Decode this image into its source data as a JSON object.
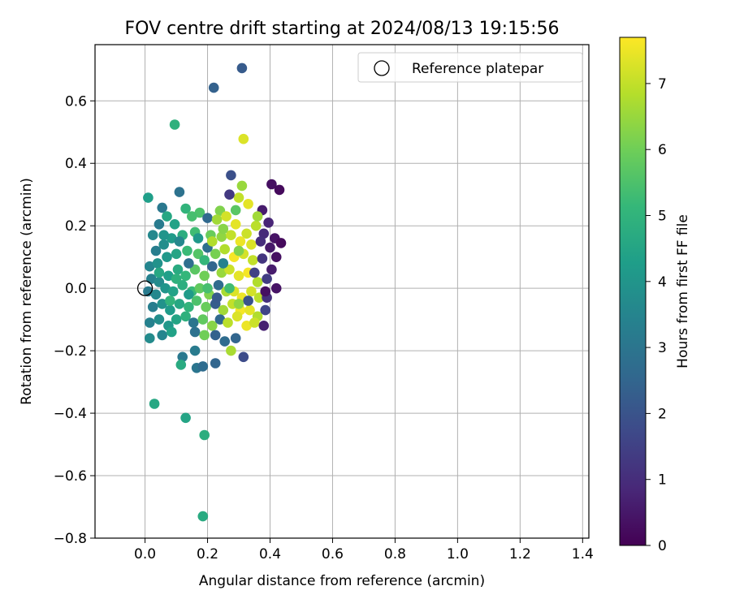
{
  "chart_data": {
    "type": "scatter",
    "title": "FOV centre drift starting at 2024/08/13 19:15:56",
    "xlabel": "Angular distance from reference (arcmin)",
    "ylabel": "Rotation from reference (arcmin)",
    "xlim": [
      -0.16,
      1.42
    ],
    "ylim": [
      -0.8,
      0.78
    ],
    "xticks": [
      0.0,
      0.2,
      0.4,
      0.6,
      0.8,
      1.0,
      1.2,
      1.4
    ],
    "yticks": [
      -0.8,
      -0.6,
      -0.4,
      -0.2,
      0.0,
      0.2,
      0.4,
      0.6
    ],
    "xtick_labels": [
      "0.0",
      "0.2",
      "0.4",
      "0.6",
      "0.8",
      "1.0",
      "1.2",
      "1.4"
    ],
    "ytick_labels": [
      "−0.8",
      "−0.6",
      "−0.4",
      "−0.2",
      "0.0",
      "0.2",
      "0.4",
      "0.6"
    ],
    "grid": true,
    "legend": {
      "position": "top-right",
      "entries": [
        {
          "label": "Reference platepar",
          "marker": "open-circle"
        }
      ]
    },
    "reference_point": {
      "x": 0.0,
      "y": 0.0
    },
    "colorbar": {
      "label": "Hours from first FF file",
      "colormap": "viridis",
      "range": [
        0,
        7.7
      ],
      "ticks": [
        0,
        1,
        2,
        3,
        4,
        5,
        6,
        7
      ],
      "tick_labels": [
        "0",
        "1",
        "2",
        "3",
        "4",
        "5",
        "6",
        "7"
      ]
    },
    "colormap_stops": [
      "#440154",
      "#482878",
      "#3e4989",
      "#31688e",
      "#26828e",
      "#1f9e89",
      "#35b779",
      "#6ece58",
      "#b5de2b",
      "#fde725"
    ],
    "points": [
      [
        0.31,
        0.705,
        2.2
      ],
      [
        0.22,
        0.642,
        2.4
      ],
      [
        0.095,
        0.524,
        4.9
      ],
      [
        0.315,
        0.478,
        7.3
      ],
      [
        0.405,
        0.333,
        0.3
      ],
      [
        0.43,
        0.315,
        0.2
      ],
      [
        0.275,
        0.362,
        1.9
      ],
      [
        0.31,
        0.328,
        6.5
      ],
      [
        0.11,
        0.308,
        2.9
      ],
      [
        0.01,
        0.29,
        4.3
      ],
      [
        0.3,
        0.29,
        7.0
      ],
      [
        0.055,
        0.258,
        3.1
      ],
      [
        0.13,
        0.255,
        5.0
      ],
      [
        0.175,
        0.242,
        5.5
      ],
      [
        0.24,
        0.248,
        6.2
      ],
      [
        0.375,
        0.25,
        0.6
      ],
      [
        0.025,
        0.17,
        3.6
      ],
      [
        0.045,
        0.205,
        3.2
      ],
      [
        0.07,
        0.23,
        4.6
      ],
      [
        0.095,
        0.205,
        4.4
      ],
      [
        0.15,
        0.23,
        5.4
      ],
      [
        0.2,
        0.225,
        2.6
      ],
      [
        0.23,
        0.22,
        6.6
      ],
      [
        0.26,
        0.23,
        7.2
      ],
      [
        0.29,
        0.205,
        7.4
      ],
      [
        0.325,
        0.175,
        7.1
      ],
      [
        0.355,
        0.2,
        6.9
      ],
      [
        0.38,
        0.175,
        0.9
      ],
      [
        0.415,
        0.16,
        0.4
      ],
      [
        0.435,
        0.145,
        0.2
      ],
      [
        0.035,
        0.12,
        3.3
      ],
      [
        0.06,
        0.14,
        3.8
      ],
      [
        0.085,
        0.16,
        4.2
      ],
      [
        0.12,
        0.17,
        4.8
      ],
      [
        0.16,
        0.18,
        5.3
      ],
      [
        0.21,
        0.17,
        5.9
      ],
      [
        0.245,
        0.165,
        6.4
      ],
      [
        0.275,
        0.17,
        7.0
      ],
      [
        0.305,
        0.15,
        7.5
      ],
      [
        0.34,
        0.14,
        7.3
      ],
      [
        0.37,
        0.15,
        1.0
      ],
      [
        0.4,
        0.13,
        0.5
      ],
      [
        0.42,
        0.1,
        0.3
      ],
      [
        0.015,
        0.07,
        3.5
      ],
      [
        0.04,
        0.08,
        3.9
      ],
      [
        0.07,
        0.1,
        4.1
      ],
      [
        0.1,
        0.11,
        4.5
      ],
      [
        0.135,
        0.12,
        5.2
      ],
      [
        0.17,
        0.11,
        5.6
      ],
      [
        0.2,
        0.13,
        2.8
      ],
      [
        0.225,
        0.11,
        6.1
      ],
      [
        0.255,
        0.125,
        6.8
      ],
      [
        0.285,
        0.1,
        7.6
      ],
      [
        0.315,
        0.11,
        7.2
      ],
      [
        0.345,
        0.09,
        7.0
      ],
      [
        0.375,
        0.095,
        1.2
      ],
      [
        0.405,
        0.06,
        0.6
      ],
      [
        0.02,
        0.03,
        3.4
      ],
      [
        0.045,
        0.02,
        3.7
      ],
      [
        0.075,
        0.04,
        4.3
      ],
      [
        0.105,
        0.06,
        4.7
      ],
      [
        0.13,
        0.04,
        5.1
      ],
      [
        0.16,
        0.06,
        5.7
      ],
      [
        0.19,
        0.04,
        6.0
      ],
      [
        0.215,
        0.07,
        2.5
      ],
      [
        0.245,
        0.05,
        6.5
      ],
      [
        0.27,
        0.06,
        7.1
      ],
      [
        0.3,
        0.04,
        7.4
      ],
      [
        0.33,
        0.05,
        7.6
      ],
      [
        0.36,
        0.02,
        6.8
      ],
      [
        0.39,
        0.03,
        1.4
      ],
      [
        0.42,
        0.0,
        0.4
      ],
      [
        0.01,
        -0.01,
        3.2
      ],
      [
        0.035,
        -0.02,
        3.6
      ],
      [
        0.065,
        0.0,
        4.0
      ],
      [
        0.09,
        -0.01,
        4.4
      ],
      [
        0.12,
        0.01,
        4.8
      ],
      [
        0.15,
        -0.01,
        5.2
      ],
      [
        0.175,
        0.0,
        5.8
      ],
      [
        0.205,
        -0.02,
        6.2
      ],
      [
        0.235,
        0.01,
        2.7
      ],
      [
        0.26,
        -0.01,
        6.7
      ],
      [
        0.285,
        -0.01,
        7.3
      ],
      [
        0.31,
        -0.03,
        7.5
      ],
      [
        0.34,
        -0.01,
        7.2
      ],
      [
        0.365,
        -0.03,
        6.9
      ],
      [
        0.39,
        -0.03,
        1.1
      ],
      [
        0.025,
        -0.06,
        3.3
      ],
      [
        0.055,
        -0.05,
        3.9
      ],
      [
        0.08,
        -0.07,
        4.2
      ],
      [
        0.11,
        -0.05,
        4.6
      ],
      [
        0.14,
        -0.06,
        5.0
      ],
      [
        0.165,
        -0.04,
        5.5
      ],
      [
        0.195,
        -0.06,
        5.9
      ],
      [
        0.225,
        -0.05,
        2.3
      ],
      [
        0.25,
        -0.07,
        6.6
      ],
      [
        0.28,
        -0.05,
        7.0
      ],
      [
        0.305,
        -0.07,
        7.6
      ],
      [
        0.335,
        -0.07,
        7.4
      ],
      [
        0.36,
        -0.09,
        6.8
      ],
      [
        0.385,
        -0.07,
        1.6
      ],
      [
        0.015,
        -0.11,
        3.4
      ],
      [
        0.045,
        -0.1,
        3.8
      ],
      [
        0.075,
        -0.12,
        4.1
      ],
      [
        0.1,
        -0.1,
        4.5
      ],
      [
        0.13,
        -0.09,
        4.9
      ],
      [
        0.155,
        -0.11,
        3.0
      ],
      [
        0.185,
        -0.1,
        5.8
      ],
      [
        0.215,
        -0.12,
        6.3
      ],
      [
        0.24,
        -0.1,
        2.6
      ],
      [
        0.265,
        -0.11,
        6.9
      ],
      [
        0.295,
        -0.09,
        7.3
      ],
      [
        0.325,
        -0.12,
        7.5
      ],
      [
        0.35,
        -0.11,
        7.1
      ],
      [
        0.38,
        -0.12,
        0.7
      ],
      [
        0.015,
        -0.16,
        3.7
      ],
      [
        0.055,
        -0.15,
        3.5
      ],
      [
        0.085,
        -0.14,
        4.4
      ],
      [
        0.16,
        -0.14,
        2.9
      ],
      [
        0.19,
        -0.15,
        6.0
      ],
      [
        0.225,
        -0.15,
        2.4
      ],
      [
        0.255,
        -0.17,
        2.7
      ],
      [
        0.29,
        -0.16,
        2.5
      ],
      [
        0.12,
        -0.22,
        3.1
      ],
      [
        0.16,
        -0.2,
        3.2
      ],
      [
        0.275,
        -0.2,
        6.7
      ],
      [
        0.315,
        -0.22,
        1.8
      ],
      [
        0.115,
        -0.245,
        4.7
      ],
      [
        0.165,
        -0.255,
        3.0
      ],
      [
        0.185,
        -0.25,
        2.7
      ],
      [
        0.225,
        -0.24,
        2.5
      ],
      [
        0.03,
        -0.37,
        4.6
      ],
      [
        0.13,
        -0.415,
        4.5
      ],
      [
        0.19,
        -0.47,
        4.8
      ],
      [
        0.185,
        -0.73,
        4.7
      ],
      [
        0.27,
        0.3,
        1.3
      ],
      [
        0.33,
        0.27,
        7.4
      ],
      [
        0.36,
        0.23,
        6.6
      ],
      [
        0.14,
        0.08,
        2.8
      ],
      [
        0.19,
        0.09,
        5.1
      ],
      [
        0.06,
        0.17,
        4.0
      ],
      [
        0.25,
        0.19,
        6.3
      ],
      [
        0.23,
        -0.03,
        2.2
      ],
      [
        0.2,
        0.0,
        5.4
      ],
      [
        0.1,
        0.03,
        4.9
      ],
      [
        0.3,
        0.12,
        6.2
      ],
      [
        0.35,
        0.05,
        1.5
      ],
      [
        0.33,
        -0.04,
        2.0
      ],
      [
        0.395,
        0.21,
        0.8
      ],
      [
        0.385,
        -0.01,
        0.3
      ],
      [
        0.29,
        0.25,
        5.7
      ],
      [
        0.11,
        0.15,
        3.6
      ],
      [
        0.17,
        0.16,
        4.1
      ],
      [
        0.27,
        0.0,
        5.3
      ],
      [
        0.215,
        0.15,
        6.8
      ],
      [
        0.08,
        -0.04,
        5.0
      ],
      [
        0.14,
        -0.02,
        4.2
      ],
      [
        0.3,
        -0.05,
        6.4
      ],
      [
        0.25,
        0.08,
        3.4
      ],
      [
        0.045,
        0.05,
        4.6
      ]
    ]
  }
}
